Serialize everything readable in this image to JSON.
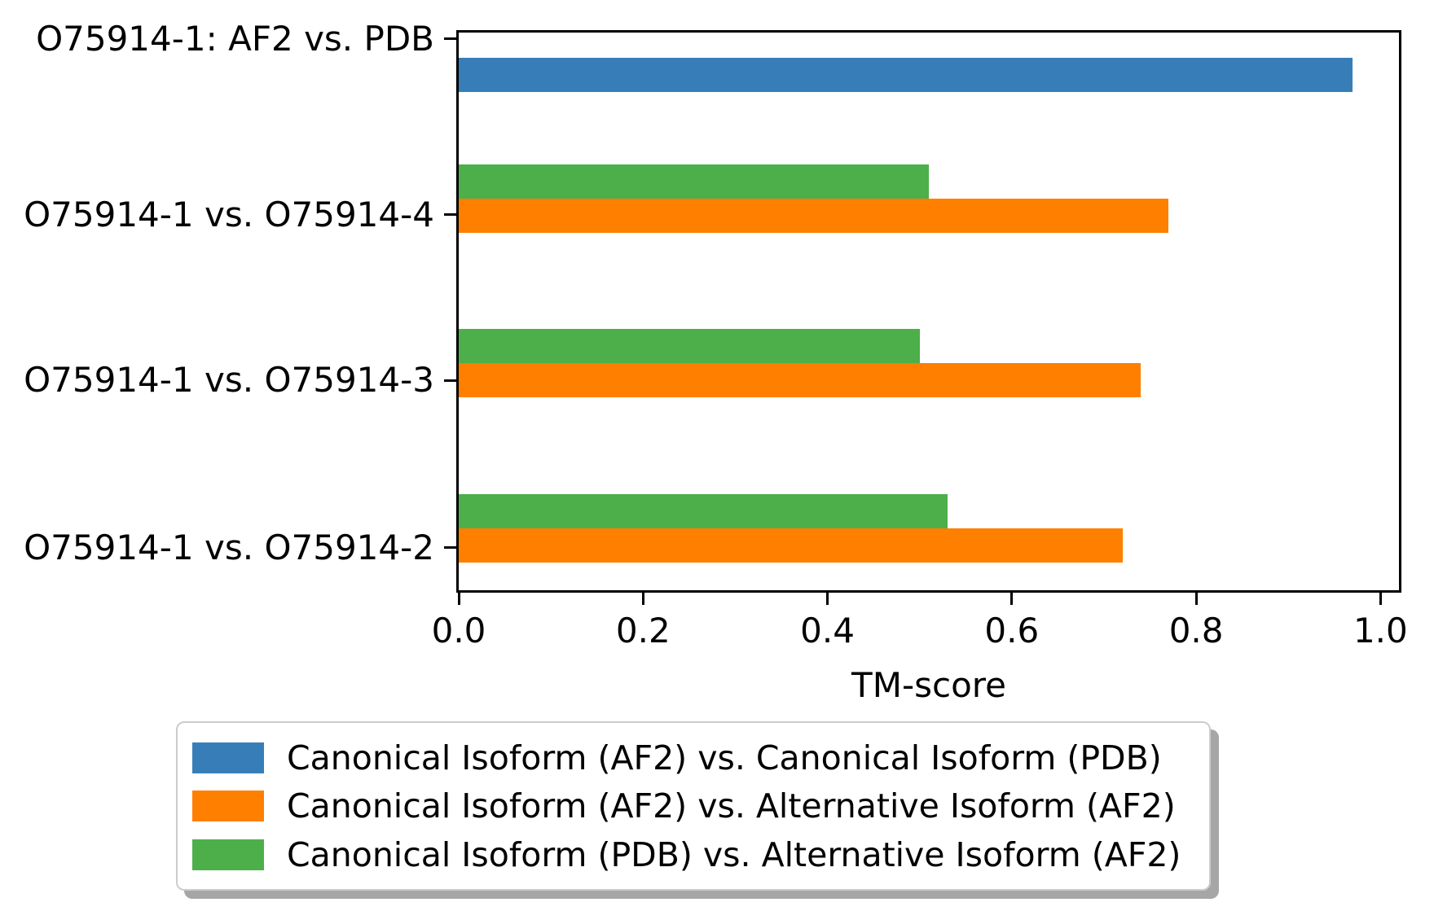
{
  "chart_data": {
    "type": "bar",
    "orientation": "horizontal",
    "title": "",
    "xlabel": "TM-score",
    "ylabel": "",
    "grid": false,
    "xlim": [
      0.0,
      1.02
    ],
    "x_ticks": [
      0.0,
      0.2,
      0.4,
      0.6,
      0.8,
      1.0
    ],
    "x_tick_labels": [
      "0.0",
      "0.2",
      "0.4",
      "0.6",
      "0.8",
      "1.0"
    ],
    "categories": [
      "O75914-1: AF2 vs. PDB",
      "O75914-1 vs. O75914-4",
      "O75914-1 vs. O75914-3",
      "O75914-1 vs. O75914-2"
    ],
    "series": [
      {
        "name": "Canonical Isoform (AF2) vs. Canonical Isoform (PDB)",
        "color": "#377eb8",
        "values": [
          0.97,
          null,
          null,
          null
        ]
      },
      {
        "name": "Canonical Isoform (AF2) vs. Alternative Isoform (AF2)",
        "color": "#ff7f00",
        "values": [
          null,
          0.77,
          0.74,
          0.72
        ]
      },
      {
        "name": "Canonical Isoform (PDB) vs. Alternative Isoform (AF2)",
        "color": "#4daf4a",
        "values": [
          null,
          0.51,
          0.5,
          0.53
        ]
      }
    ],
    "legend_position": "below-chart"
  },
  "colors": {
    "axis": "#000000",
    "legend_border": "#cccccc",
    "legend_shadow": "#a6a6a6",
    "background": "#ffffff"
  }
}
